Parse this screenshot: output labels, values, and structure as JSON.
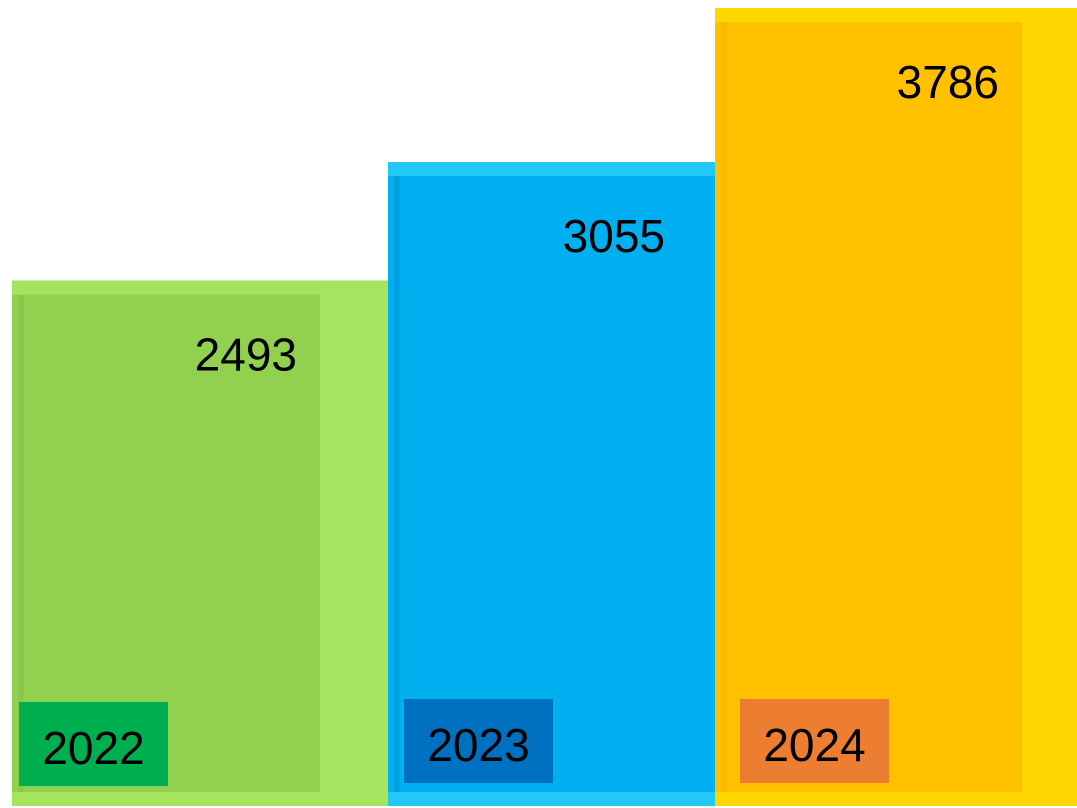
{
  "chart_data": {
    "type": "bar",
    "categories": [
      "2022",
      "2023",
      "2024"
    ],
    "values": [
      2493,
      3055,
      3786
    ],
    "value_labels": [
      "2493",
      "3055",
      "3786"
    ],
    "title": "",
    "xlabel": "",
    "ylabel": "",
    "grid": false,
    "legend": "none",
    "colors": {
      "bars": [
        "#92D050",
        "#00B0F0",
        "#FFC000"
      ],
      "bar_highlights": [
        "#A6E35E",
        "#22C8F8",
        "#FFD700"
      ],
      "bar_shadows": [
        "#86C346",
        "#0099D8",
        "#F5B400"
      ],
      "year_badges": [
        "#00B050",
        "#0070C0",
        "#ED7D31"
      ],
      "text": "#000000"
    }
  }
}
